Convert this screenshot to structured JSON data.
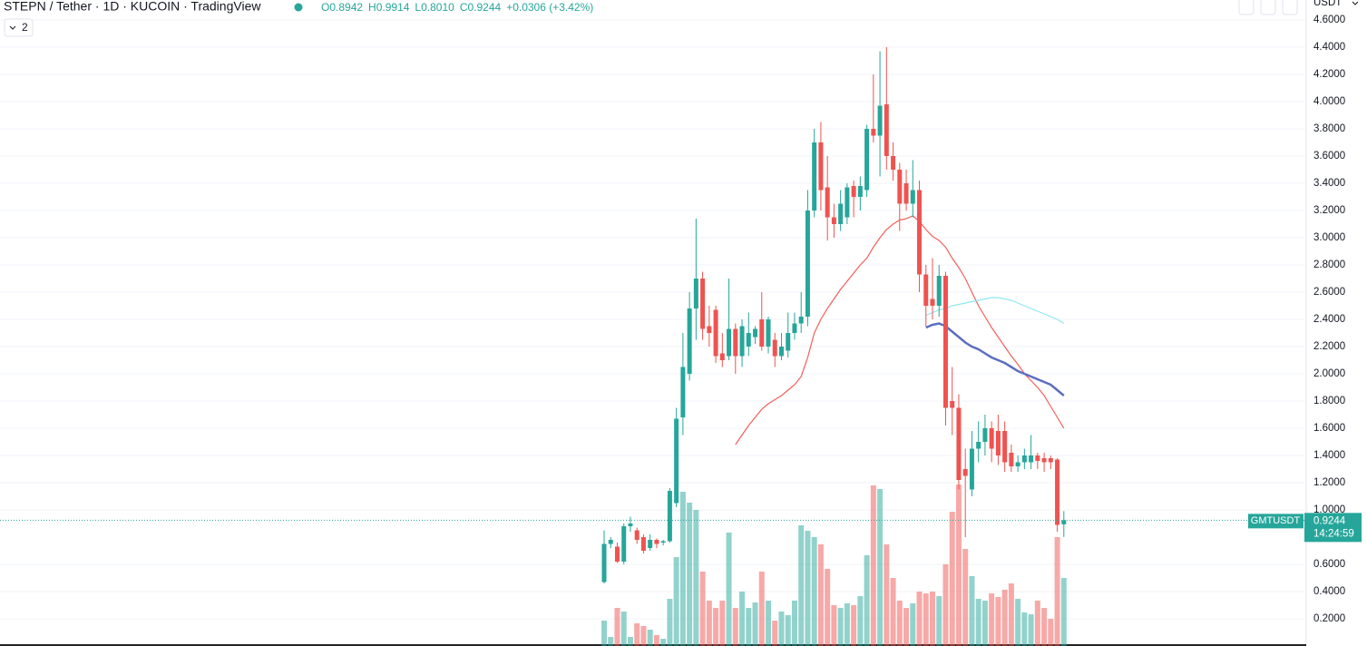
{
  "header": {
    "symbol": "STEPN / Tether · 1D · KUCOIN · TradingView",
    "ohlc": [
      "O0.8942",
      "H0.9914",
      "L0.8010",
      "C0.9244",
      "+0.0306 (+3.42%)"
    ],
    "indicator_count": "2"
  },
  "chart_data": {
    "type": "candlestick",
    "currency": "USDT",
    "open": [
      0.47,
      0.75,
      0.73,
      0.62,
      0.88,
      0.85,
      0.8,
      0.72,
      0.78,
      0.76,
      0.77,
      1.05,
      1.68,
      2.0,
      2.48,
      2.7,
      2.35,
      2.47,
      2.15,
      2.13,
      2.33,
      2.13,
      2.2,
      2.27,
      2.4,
      2.2,
      2.25,
      2.13,
      2.17,
      2.3,
      2.37,
      2.42,
      3.2,
      3.7,
      3.37,
      3.15,
      3.1,
      3.15,
      3.38,
      3.3,
      3.35,
      3.8,
      3.75,
      3.98,
      3.6,
      3.5,
      3.4,
      3.25,
      3.35,
      2.73,
      2.55,
      2.5,
      2.72,
      1.8,
      1.75,
      1.3,
      1.15,
      1.45,
      1.5,
      1.6,
      1.58,
      1.58,
      1.42,
      1.32,
      1.35,
      1.35,
      1.4,
      1.38,
      1.38,
      1.37,
      0.8942
    ],
    "high": [
      0.85,
      0.8,
      0.76,
      0.9,
      0.95,
      0.87,
      0.82,
      0.82,
      0.79,
      0.78,
      1.16,
      1.75,
      2.3,
      2.6,
      3.14,
      2.75,
      2.5,
      2.5,
      2.3,
      2.7,
      2.37,
      2.4,
      2.45,
      2.35,
      2.6,
      2.42,
      2.3,
      2.3,
      2.45,
      2.45,
      2.6,
      3.35,
      3.8,
      3.85,
      3.6,
      3.25,
      3.35,
      3.4,
      3.42,
      3.45,
      3.83,
      4.2,
      4.37,
      4.4,
      3.7,
      3.55,
      3.5,
      3.57,
      3.42,
      2.8,
      2.85,
      2.8,
      2.75,
      2.05,
      1.85,
      1.45,
      1.58,
      1.65,
      1.7,
      1.65,
      1.7,
      1.65,
      1.48,
      1.4,
      1.45,
      1.55,
      1.42,
      1.42,
      1.4,
      1.38,
      0.9914
    ],
    "low": [
      0.46,
      0.72,
      0.61,
      0.6,
      0.84,
      0.75,
      0.68,
      0.7,
      0.72,
      0.74,
      0.76,
      1.02,
      1.55,
      1.95,
      2.25,
      2.25,
      2.2,
      2.08,
      2.05,
      2.1,
      2.0,
      2.05,
      2.13,
      2.22,
      2.17,
      2.15,
      2.05,
      2.1,
      2.12,
      2.25,
      2.3,
      2.35,
      3.15,
      3.2,
      2.98,
      3.0,
      3.05,
      3.1,
      3.15,
      3.2,
      3.3,
      3.7,
      3.45,
      3.5,
      3.42,
      3.05,
      3.2,
      3.15,
      2.6,
      2.35,
      2.4,
      2.42,
      1.62,
      1.55,
      1.15,
      0.8,
      1.1,
      1.35,
      1.4,
      1.35,
      1.33,
      1.28,
      1.28,
      1.28,
      1.3,
      1.3,
      1.3,
      1.28,
      1.3,
      0.84,
      0.801
    ],
    "close": [
      0.75,
      0.78,
      0.62,
      0.88,
      0.9,
      0.78,
      0.7,
      0.78,
      0.75,
      0.77,
      1.14,
      1.67,
      2.05,
      2.48,
      2.7,
      2.33,
      2.3,
      2.13,
      2.1,
      2.33,
      2.13,
      2.35,
      2.3,
      2.33,
      2.2,
      2.4,
      2.13,
      2.2,
      2.3,
      2.37,
      2.42,
      3.2,
      3.7,
      3.35,
      3.15,
      3.1,
      3.25,
      3.37,
      3.3,
      3.38,
      3.8,
      3.75,
      3.97,
      3.6,
      3.5,
      3.25,
      3.25,
      3.35,
      2.73,
      2.5,
      2.5,
      2.72,
      1.75,
      1.75,
      1.22,
      1.25,
      1.45,
      1.5,
      1.6,
      1.45,
      1.4,
      1.35,
      1.32,
      1.35,
      1.4,
      1.4,
      1.36,
      1.35,
      1.35,
      0.89,
      0.9244
    ],
    "volume": [
      28,
      10,
      42,
      38,
      10,
      25,
      22,
      18,
      12,
      8,
      52,
      98,
      170,
      158,
      150,
      82,
      50,
      42,
      50,
      125,
      42,
      60,
      42,
      48,
      82,
      50,
      28,
      38,
      34,
      50,
      133,
      127,
      120,
      112,
      85,
      45,
      42,
      47,
      45,
      55,
      100,
      177,
      173,
      112,
      75,
      50,
      42,
      47,
      60,
      58,
      60,
      55,
      90,
      148,
      178,
      107,
      77,
      52,
      50,
      58,
      54,
      62,
      69,
      52,
      37,
      35,
      50,
      42,
      30,
      120,
      75
    ],
    "up_color": "#26a69a",
    "down_color": "#ef5350",
    "series": [
      {
        "color": "#f0605a",
        "values": [
          null,
          null,
          null,
          null,
          null,
          null,
          null,
          null,
          null,
          null,
          null,
          null,
          null,
          null,
          null,
          null,
          null,
          null,
          null,
          null,
          1.48,
          1.55,
          1.62,
          1.68,
          1.74,
          1.78,
          1.81,
          1.84,
          1.88,
          1.92,
          1.98,
          2.12,
          2.3,
          2.4,
          2.48,
          2.55,
          2.62,
          2.68,
          2.74,
          2.8,
          2.85,
          2.93,
          3.0,
          3.06,
          3.1,
          3.13,
          3.14,
          3.16,
          3.12,
          3.06,
          3.01,
          2.98,
          2.93,
          2.85,
          2.78,
          2.7,
          2.6,
          2.5,
          2.42,
          2.34,
          2.27,
          2.2,
          2.13,
          2.07,
          2.0,
          1.95,
          1.9,
          1.84,
          1.76,
          1.68,
          1.6
        ]
      },
      {
        "color": "#5b6fbf",
        "values": [
          null,
          null,
          null,
          null,
          null,
          null,
          null,
          null,
          null,
          null,
          null,
          null,
          null,
          null,
          null,
          null,
          null,
          null,
          null,
          null,
          null,
          null,
          null,
          null,
          null,
          null,
          null,
          null,
          null,
          null,
          null,
          null,
          null,
          null,
          null,
          null,
          null,
          null,
          null,
          null,
          null,
          null,
          null,
          null,
          null,
          null,
          null,
          null,
          null,
          2.34,
          2.36,
          2.37,
          2.35,
          2.31,
          2.27,
          2.23,
          2.2,
          2.18,
          2.15,
          2.12,
          2.1,
          2.08,
          2.05,
          2.02,
          2.0,
          1.98,
          1.96,
          1.94,
          1.92,
          1.88,
          1.84
        ]
      },
      {
        "color": "#8ee8f0",
        "values": [
          null,
          null,
          null,
          null,
          null,
          null,
          null,
          null,
          null,
          null,
          null,
          null,
          null,
          null,
          null,
          null,
          null,
          null,
          null,
          null,
          null,
          null,
          null,
          null,
          null,
          null,
          null,
          null,
          null,
          null,
          null,
          null,
          null,
          null,
          null,
          null,
          null,
          null,
          null,
          null,
          null,
          null,
          null,
          null,
          null,
          null,
          null,
          null,
          null,
          2.43,
          2.45,
          2.47,
          2.48,
          2.5,
          2.51,
          2.52,
          2.53,
          2.54,
          2.55,
          2.56,
          2.56,
          2.55,
          2.54,
          2.52,
          2.5,
          2.48,
          2.46,
          2.44,
          2.42,
          2.4,
          2.37
        ]
      }
    ],
    "ylim": [
      0,
      4.7467
    ],
    "yticks": [
      {
        "value": 0.2,
        "label": "0.2000"
      },
      {
        "value": 0.4,
        "label": "0.4000"
      },
      {
        "value": 0.6,
        "label": "0.6000"
      },
      {
        "value": 1.0,
        "label": "1.0000"
      },
      {
        "value": 1.2,
        "label": "1.2000"
      },
      {
        "value": 1.4,
        "label": "1.4000"
      },
      {
        "value": 1.6,
        "label": "1.6000"
      },
      {
        "value": 1.8,
        "label": "1.8000"
      },
      {
        "value": 2.0,
        "label": "2.0000"
      },
      {
        "value": 2.2,
        "label": "2.2000"
      },
      {
        "value": 2.4,
        "label": "2.4000"
      },
      {
        "value": 2.6,
        "label": "2.6000"
      },
      {
        "value": 2.8,
        "label": "2.8000"
      },
      {
        "value": 3.0,
        "label": "3.0000"
      },
      {
        "value": 3.2,
        "label": "3.2000"
      },
      {
        "value": 3.4,
        "label": "3.4000"
      },
      {
        "value": 3.6,
        "label": "3.6000"
      },
      {
        "value": 3.8,
        "label": "3.8000"
      },
      {
        "value": 4.0,
        "label": "4.0000"
      },
      {
        "value": 4.2,
        "label": "4.2000"
      },
      {
        "value": 4.4,
        "label": "4.4000"
      },
      {
        "value": 4.6,
        "label": "4.6000"
      }
    ],
    "y2lim": [
      0,
      712
    ],
    "grid": true,
    "last_price": {
      "symbol": "GMTUSDT",
      "value": 0.9244,
      "label": "0.9244",
      "countdown": "14:24:59"
    }
  }
}
